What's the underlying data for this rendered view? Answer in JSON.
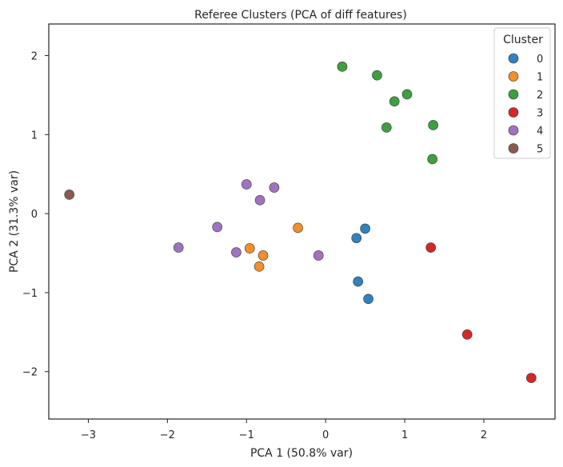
{
  "chart_data": {
    "type": "scatter",
    "title": "Referee Clusters (PCA of diff features)",
    "xlabel": "PCA 1 (50.8% var)",
    "ylabel": "PCA 2 (31.3% var)",
    "xlim": [
      -3.5,
      2.9
    ],
    "ylim": [
      -2.6,
      2.4
    ],
    "xticks": [
      -3,
      -2,
      -1,
      0,
      1,
      2
    ],
    "yticks": [
      -2,
      -1,
      0,
      1,
      2
    ],
    "xtick_labels": [
      "−3",
      "−2",
      "−1",
      "0",
      "1",
      "2"
    ],
    "ytick_labels": [
      "−2",
      "−1",
      "0",
      "1",
      "2"
    ],
    "grid": false,
    "legend": {
      "title": "Cluster",
      "placement": "top-right"
    },
    "series": [
      {
        "name": "0",
        "color": "#3182bd",
        "points": [
          [
            0.5,
            -0.19
          ],
          [
            0.39,
            -0.31
          ],
          [
            0.41,
            -0.86
          ],
          [
            0.54,
            -1.08
          ]
        ]
      },
      {
        "name": "1",
        "color": "#f28e2b",
        "points": [
          [
            -0.35,
            -0.18
          ],
          [
            -0.96,
            -0.44
          ],
          [
            -0.79,
            -0.53
          ],
          [
            -0.84,
            -0.67
          ]
        ]
      },
      {
        "name": "2",
        "color": "#3e9f3e",
        "points": [
          [
            0.21,
            1.86
          ],
          [
            0.65,
            1.75
          ],
          [
            0.87,
            1.42
          ],
          [
            1.03,
            1.51
          ],
          [
            1.36,
            1.12
          ],
          [
            0.77,
            1.09
          ],
          [
            1.35,
            0.69
          ]
        ]
      },
      {
        "name": "3",
        "color": "#d62728",
        "points": [
          [
            1.33,
            -0.43
          ],
          [
            1.79,
            -1.53
          ],
          [
            2.6,
            -2.08
          ]
        ]
      },
      {
        "name": "4",
        "color": "#a172c2",
        "points": [
          [
            -1.0,
            0.37
          ],
          [
            -0.65,
            0.33
          ],
          [
            -0.83,
            0.17
          ],
          [
            -1.37,
            -0.17
          ],
          [
            -1.86,
            -0.43
          ],
          [
            -1.13,
            -0.49
          ],
          [
            -0.09,
            -0.53
          ]
        ]
      },
      {
        "name": "5",
        "color": "#8c5a50",
        "points": [
          [
            -3.24,
            0.24
          ]
        ]
      }
    ]
  }
}
